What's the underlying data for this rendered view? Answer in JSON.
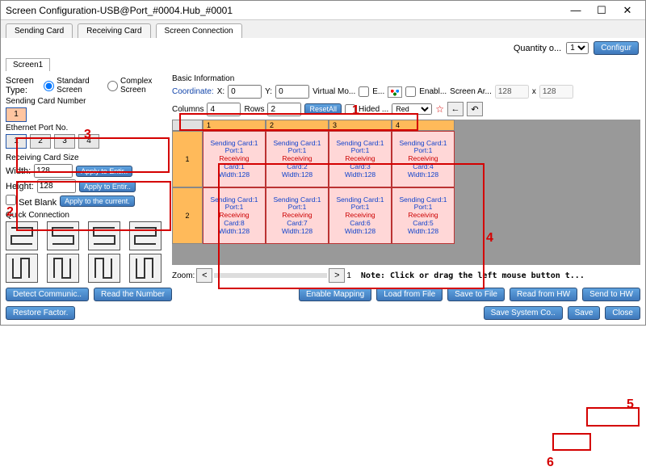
{
  "window": {
    "title": "Screen Configuration-USB@Port_#0004.Hub_#0001"
  },
  "tabs": {
    "sending": "Sending Card",
    "receiving": "Receiving Card",
    "connection": "Screen Connection"
  },
  "topbar": {
    "quantity_label": "Quantity o...",
    "quantity_value": "1",
    "configure": "Configur"
  },
  "screenTab": "Screen1",
  "screenType": {
    "label": "Screen Type:",
    "standard": "Standard Screen",
    "complex": "Complex Screen"
  },
  "sendingCard": {
    "label": "Sending Card Number",
    "value": "1"
  },
  "ethernet": {
    "label": "Ethernet Port No.",
    "ports": [
      "1",
      "2",
      "3",
      "4"
    ],
    "selected": 0
  },
  "recvSize": {
    "label": "Receiving Card Size",
    "width_label": "Width:",
    "width": "128",
    "height_label": "Height:",
    "height": "128",
    "apply_entire": "Apply to Entir..",
    "apply_current": "Apply to the current.",
    "set_blank": "Set Blank"
  },
  "quickConn": {
    "label": "Quick Connection"
  },
  "basic": {
    "label": "Basic Information",
    "coordinate": "Coordinate:",
    "x_label": "X:",
    "x": "0",
    "y_label": "Y:",
    "y": "0",
    "virtual": "Virtual Mo...",
    "e_label": "E...",
    "enable": "Enabl...",
    "screen_ar": "Screen Ar...",
    "sw": "128",
    "sh": "128",
    "columns_label": "Columns",
    "columns": "4",
    "rows_label": "Rows",
    "rows": "2",
    "reset": "ResetAll",
    "hided": "Hided ...",
    "red": "Red"
  },
  "grid": {
    "colHeaders": [
      "1",
      "2",
      "3",
      "4"
    ],
    "rowHeaders": [
      "1",
      "2"
    ],
    "cells": [
      [
        {
          "send": "Sending Card:1",
          "port": "Port:1",
          "recv": "Receiving",
          "card": "Card:1",
          "w": "Width:128"
        },
        {
          "send": "Sending Card:1",
          "port": "Port:1",
          "recv": "Receiving",
          "card": "Card:2",
          "w": "Width:128"
        },
        {
          "send": "Sending Card:1",
          "port": "Port:1",
          "recv": "Receiving",
          "card": "Card:3",
          "w": "Width:128"
        },
        {
          "send": "Sending Card:1",
          "port": "Port:1",
          "recv": "Receiving",
          "card": "Card:4",
          "w": "Width:128"
        }
      ],
      [
        {
          "send": "Sending Card:1",
          "port": "Port:1",
          "recv": "Receiving",
          "card": "Card:8",
          "w": "Width:128"
        },
        {
          "send": "Sending Card:1",
          "port": "Port:1",
          "recv": "Receiving",
          "card": "Card:7",
          "w": "Width:128"
        },
        {
          "send": "Sending Card:1",
          "port": "Port:1",
          "recv": "Receiving",
          "card": "Card:6",
          "w": "Width:128"
        },
        {
          "send": "Sending Card:1",
          "port": "Port:1",
          "recv": "Receiving",
          "card": "Card:5",
          "w": "Width:128"
        }
      ]
    ]
  },
  "zoom": {
    "label": "Zoom:",
    "value": "1",
    "note": "Note: Click or drag the left mouse button t..."
  },
  "footer": {
    "detect": "Detect Communic..",
    "read_num": "Read the Number",
    "enable_map": "Enable Mapping",
    "load": "Load from File",
    "saveFile": "Save to File",
    "readHW": "Read from HW",
    "sendHW": "Send to HW",
    "restore": "Restore Factor.",
    "saveSys": "Save System Co..",
    "save": "Save",
    "close": "Close"
  },
  "annotations": {
    "n1": "1",
    "n2": "2",
    "n3": "3",
    "n4": "4",
    "n5": "5",
    "n6": "6"
  },
  "colors": {
    "accent": "#4a7ec0",
    "annot": "#d40000",
    "cellbg": "#ffd7d7",
    "headerbg": "#ffba5a"
  }
}
